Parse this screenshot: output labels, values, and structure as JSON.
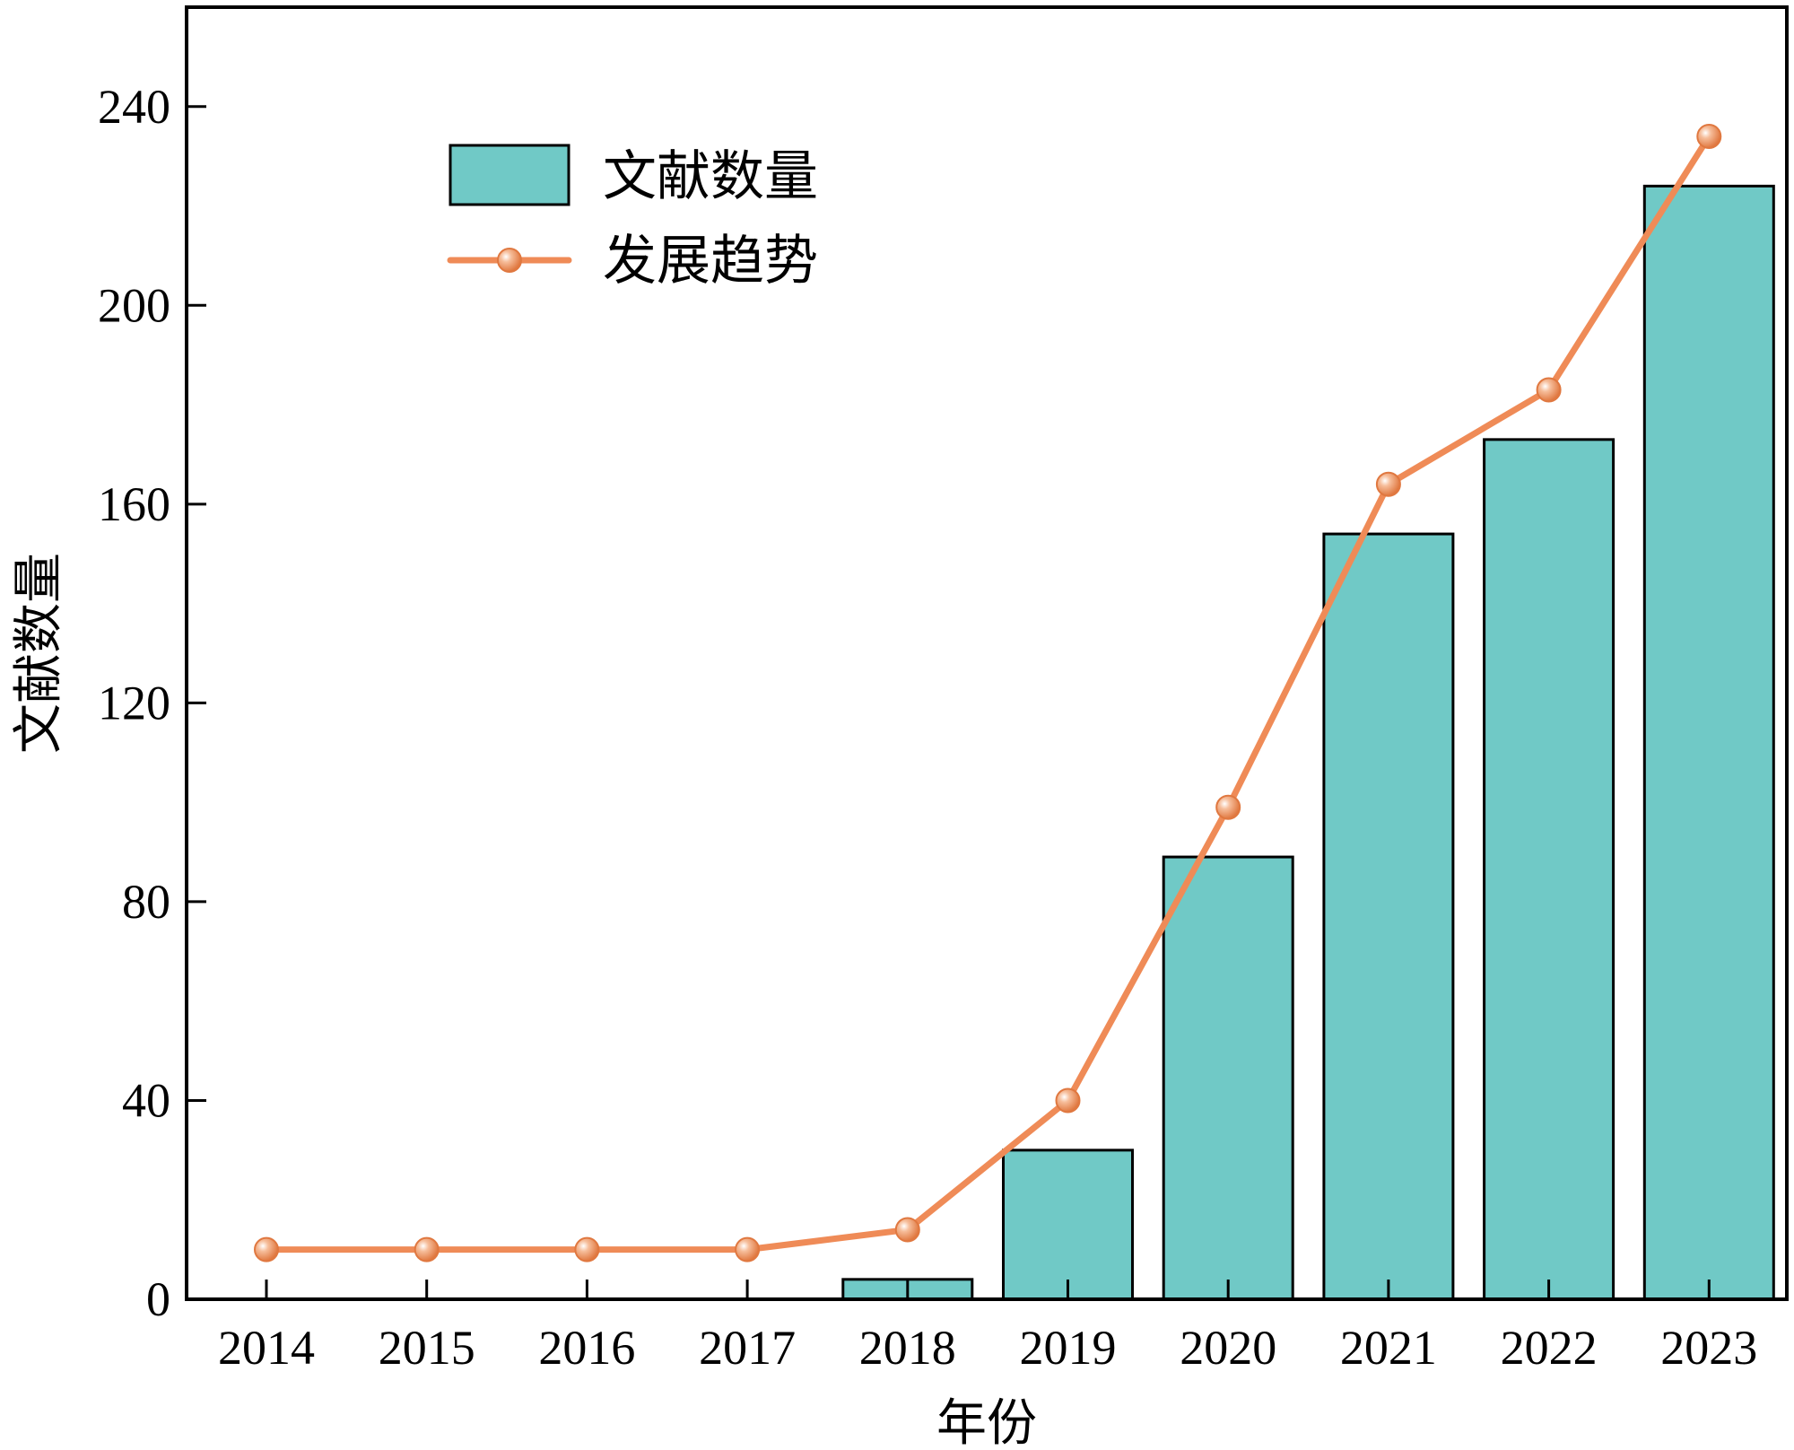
{
  "chart_data": {
    "type": "bar",
    "categories": [
      "2014",
      "2015",
      "2016",
      "2017",
      "2018",
      "2019",
      "2020",
      "2021",
      "2022",
      "2023"
    ],
    "series": [
      {
        "name": "文献数量",
        "kind": "bar",
        "color": "#70c9c6",
        "values": [
          0,
          0,
          0,
          0,
          4,
          30,
          89,
          154,
          173,
          224
        ]
      },
      {
        "name": "发展趋势",
        "kind": "line",
        "color": "#ef8b57",
        "values": [
          10,
          10,
          10,
          10,
          14,
          40,
          99,
          164,
          183,
          234
        ]
      }
    ],
    "xlabel": "年份",
    "ylabel": "文献数量",
    "ylim": [
      0,
      260
    ],
    "yticks": [
      "0",
      "40",
      "80",
      "120",
      "160",
      "200",
      "240"
    ],
    "legend_position": "top-left",
    "grid": false
  }
}
